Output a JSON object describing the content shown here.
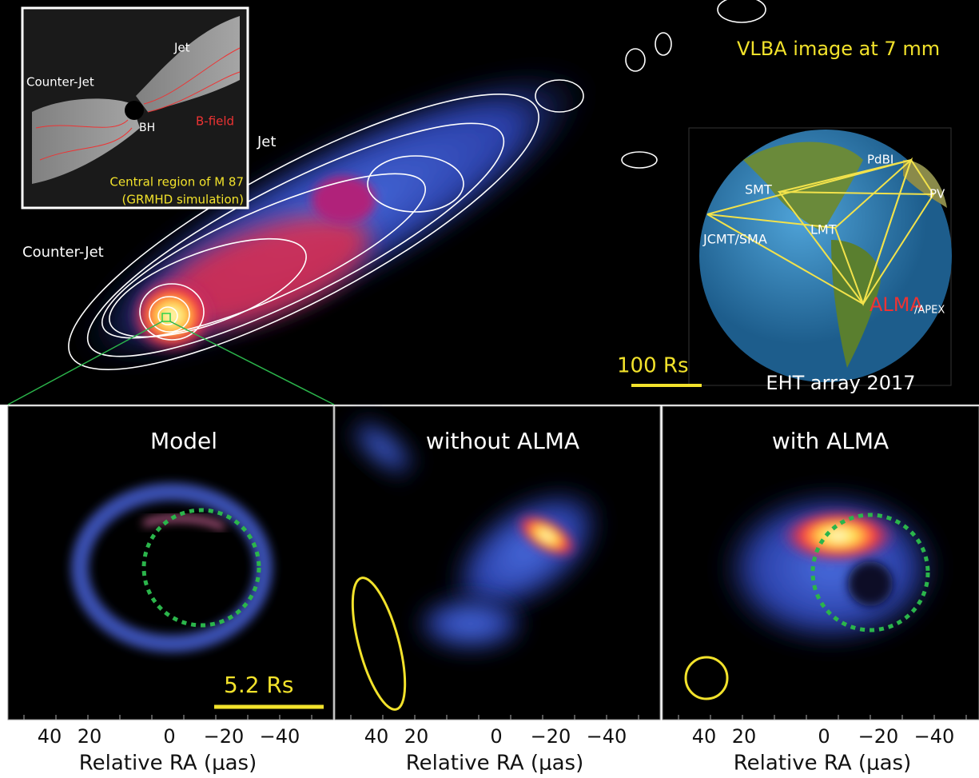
{
  "top": {
    "title": "VLBA image at 7 mm",
    "jet_label": "Jet",
    "counter_jet_label": "Counter-Jet",
    "scale_label": "100 Rs"
  },
  "inset": {
    "jet": "Jet",
    "counter_jet": "Counter-Jet",
    "bh": "BH",
    "b_field": "B-field",
    "caption": [
      "Central region of M 87",
      "(GRMHD simulation)"
    ]
  },
  "globe": {
    "title": "EHT array 2017",
    "stations": [
      "PdBI",
      "SMT",
      "PV",
      "LMT",
      "JCMT/SMA",
      "ALMA",
      "/APEX"
    ]
  },
  "panels": [
    {
      "title": "Model",
      "x_ticks": [
        "40",
        "20",
        "0",
        "−20",
        "−40"
      ],
      "x_label": "Relative RA (μas)",
      "scale_label": "5.2 Rs"
    },
    {
      "title": "without ALMA",
      "x_ticks": [
        "40",
        "20",
        "0",
        "−20",
        "−40"
      ],
      "x_label": "Relative RA (μas)"
    },
    {
      "title": "with ALMA",
      "x_ticks": [
        "40",
        "20",
        "0",
        "−20",
        "−40"
      ],
      "x_label": "Relative RA (μas)"
    }
  ]
}
